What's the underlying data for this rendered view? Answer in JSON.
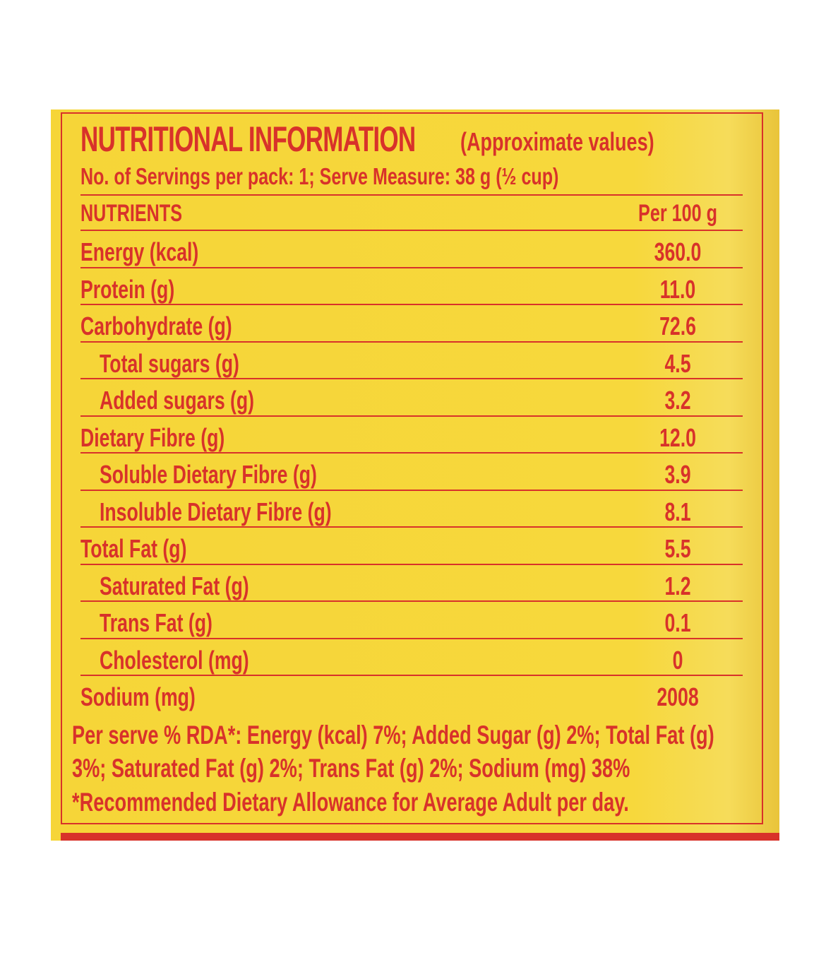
{
  "title": "NUTRITIONAL INFORMATION",
  "subtitle": "(Approximate values)",
  "serving_info": "No. of Servings per pack: 1; Serve Measure: 38 g (½ cup)",
  "table": {
    "header": {
      "label": "NUTRIENTS",
      "value": "Per 100 g"
    },
    "rows": [
      {
        "label": "Energy (kcal)",
        "value": "360.0",
        "indent": false
      },
      {
        "label": "Protein (g)",
        "value": "11.0",
        "indent": false
      },
      {
        "label": "Carbohydrate (g)",
        "value": "72.6",
        "indent": false
      },
      {
        "label": "Total sugars (g)",
        "value": "4.5",
        "indent": true
      },
      {
        "label": "Added sugars (g)",
        "value": "3.2",
        "indent": true
      },
      {
        "label": "Dietary Fibre (g)",
        "value": "12.0",
        "indent": false
      },
      {
        "label": "Soluble Dietary Fibre (g)",
        "value": "3.9",
        "indent": true
      },
      {
        "label": "Insoluble Dietary Fibre (g)",
        "value": "8.1",
        "indent": true
      },
      {
        "label": "Total Fat (g)",
        "value": "5.5",
        "indent": false
      },
      {
        "label": "Saturated Fat (g)",
        "value": "1.2",
        "indent": true
      },
      {
        "label": "Trans Fat (g)",
        "value": "0.1",
        "indent": true
      },
      {
        "label": "Cholesterol (mg)",
        "value": "0",
        "indent": true
      },
      {
        "label": "Sodium (mg)",
        "value": "2008",
        "indent": false
      }
    ]
  },
  "footer": {
    "line1": "Per serve % RDA*: Energy (kcal) 7%; Added Sugar (g) 2%; Total Fat (g)",
    "line2": "3%; Saturated Fat (g) 2%; Trans Fat (g) 2%; Sodium (mg) 38%",
    "line3": "*Recommended Dietary Allowance for Average Adult per day."
  },
  "colors": {
    "text": "#d8322a",
    "background": "#f6d538"
  }
}
